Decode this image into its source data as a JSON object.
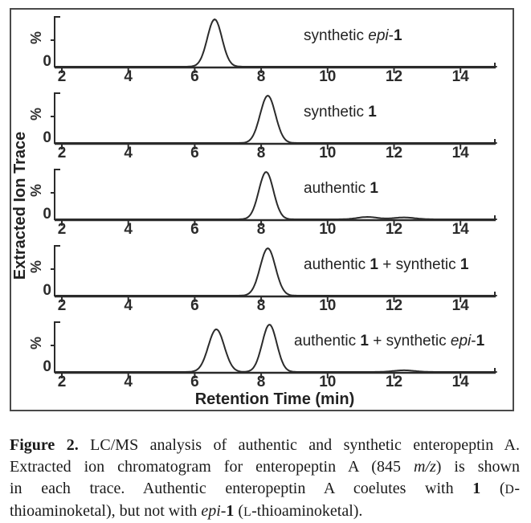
{
  "chart_data": {
    "type": "line",
    "title": "",
    "xlabel": "Retention Time (min)",
    "ylabel": "Extracted Ion Trace",
    "y_tick_label": "%",
    "y_zero_label": "0",
    "x_ticks": [
      2,
      4,
      6,
      8,
      10,
      12,
      14
    ],
    "x_tick_labels": [
      "2",
      "4",
      "6",
      "8",
      "10",
      "12",
      "14"
    ],
    "xlim": [
      1.8,
      15.1
    ],
    "ylim_relative": [
      0,
      1
    ],
    "grid": false,
    "ink_color": "#2b2b2b",
    "panels": [
      {
        "label": [
          {
            "t": "synthetic "
          },
          {
            "t": "epi",
            "i": true
          },
          {
            "t": "-"
          },
          {
            "t": "1",
            "b": true
          }
        ],
        "peaks": [
          {
            "center": 6.6,
            "height": 1.0,
            "sigma": 0.22
          }
        ]
      },
      {
        "label": [
          {
            "t": "synthetic "
          },
          {
            "t": "1",
            "b": true
          }
        ],
        "peaks": [
          {
            "center": 8.2,
            "height": 1.0,
            "sigma": 0.23
          }
        ]
      },
      {
        "label": [
          {
            "t": "authentic "
          },
          {
            "t": "1",
            "b": true
          }
        ],
        "peaks": [
          {
            "center": 8.15,
            "height": 1.0,
            "sigma": 0.22
          },
          {
            "center": 11.2,
            "height": 0.05,
            "sigma": 0.3
          },
          {
            "center": 12.3,
            "height": 0.04,
            "sigma": 0.32
          }
        ]
      },
      {
        "label": [
          {
            "t": "authentic "
          },
          {
            "t": "1",
            "b": true
          },
          {
            "t": " + synthetic "
          },
          {
            "t": "1",
            "b": true
          }
        ],
        "peaks": [
          {
            "center": 8.2,
            "height": 1.0,
            "sigma": 0.23
          }
        ]
      },
      {
        "label": [
          {
            "t": "authentic "
          },
          {
            "t": "1",
            "b": true
          },
          {
            "t": " + synthetic "
          },
          {
            "t": "epi",
            "i": true
          },
          {
            "t": "-"
          },
          {
            "t": "1",
            "b": true
          }
        ],
        "peaks": [
          {
            "center": 6.65,
            "height": 0.9,
            "sigma": 0.24
          },
          {
            "center": 8.25,
            "height": 1.0,
            "sigma": 0.22
          },
          {
            "center": 12.3,
            "height": 0.035,
            "sigma": 0.32
          }
        ]
      }
    ]
  },
  "caption": {
    "lines": [
      {
        "justify": true,
        "segments": [
          {
            "t": "Figure 2.",
            "b": true
          },
          {
            "t": " LC/MS analysis of authentic and synthetic enteropeptin A."
          }
        ]
      },
      {
        "justify": true,
        "segments": [
          {
            "t": "Extracted ion chromatogram for enteropeptin A (845 "
          },
          {
            "t": "m/z",
            "i": true
          },
          {
            "t": ") is shown"
          }
        ]
      },
      {
        "justify": true,
        "segments": [
          {
            "t": "in each trace. Authentic enteropeptin A coelutes with "
          },
          {
            "t": "1",
            "b": true
          },
          {
            "t": " ("
          },
          {
            "t": "D",
            "sc": true
          },
          {
            "t": "-"
          }
        ]
      },
      {
        "justify": false,
        "segments": [
          {
            "t": "thioaminoketal), but not with "
          },
          {
            "t": "epi",
            "i": true
          },
          {
            "t": "-"
          },
          {
            "t": "1",
            "b": true
          },
          {
            "t": " ("
          },
          {
            "t": "L",
            "sc": true
          },
          {
            "t": "-thioaminoketal)."
          }
        ]
      }
    ]
  }
}
